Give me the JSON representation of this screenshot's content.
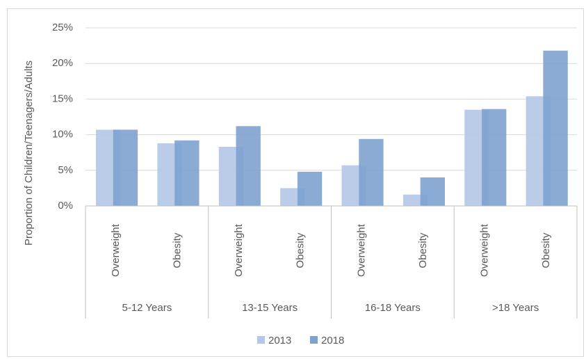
{
  "chart_data": {
    "type": "bar",
    "y_axis_label": "Proportion of Children/Teenagers/Adults",
    "groups": [
      "5-12 Years",
      "13-15 Years",
      "16-18 Years",
      ">18 Years"
    ],
    "categories": [
      "Overweight",
      "Obesity",
      "Overweight",
      "Obesity",
      "Overweight",
      "Obesity",
      "Overweight",
      "Obesity"
    ],
    "series": [
      {
        "name": "2013",
        "color": "#b4c7e7",
        "values": [
          10.7,
          8.8,
          8.3,
          2.5,
          5.7,
          1.6,
          13.5,
          15.4
        ]
      },
      {
        "name": "2018",
        "color": "#7ea2d0",
        "values": [
          10.7,
          9.2,
          11.2,
          4.8,
          9.4,
          4.0,
          13.6,
          21.8
        ]
      }
    ],
    "ylim": [
      0,
      25
    ],
    "yticks": [
      {
        "value": 0,
        "label": "0%"
      },
      {
        "value": 5,
        "label": "5%"
      },
      {
        "value": 10,
        "label": "10%"
      },
      {
        "value": 15,
        "label": "15%"
      },
      {
        "value": 20,
        "label": "20%"
      },
      {
        "value": 25,
        "label": "25%"
      }
    ],
    "grid": true,
    "legend": "bottom"
  }
}
